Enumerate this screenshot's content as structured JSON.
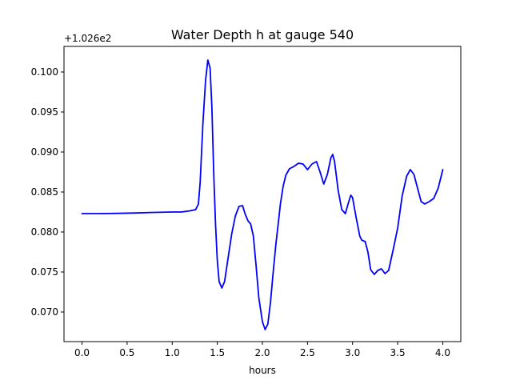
{
  "chart_data": {
    "type": "line",
    "title": "Water Depth h at gauge 540",
    "xlabel": "hours",
    "ylabel": "",
    "y_offset_label": "+1.026e2",
    "xlim": [
      -0.2,
      4.2
    ],
    "ylim": [
      0.0663,
      0.1032
    ],
    "x_ticks": [
      0.0,
      0.5,
      1.0,
      1.5,
      2.0,
      2.5,
      3.0,
      3.5,
      4.0
    ],
    "x_tick_labels": [
      "0.0",
      "0.5",
      "1.0",
      "1.5",
      "2.0",
      "2.5",
      "3.0",
      "3.5",
      "4.0"
    ],
    "y_ticks": [
      0.07,
      0.075,
      0.08,
      0.085,
      0.09,
      0.095,
      0.1
    ],
    "y_tick_labels": [
      "0.070",
      "0.075",
      "0.080",
      "0.085",
      "0.090",
      "0.095",
      "0.100"
    ],
    "grid": false,
    "series": [
      {
        "color": "#0000ff",
        "x": [
          0.0,
          0.2,
          0.4,
          0.6,
          0.8,
          1.0,
          1.1,
          1.2,
          1.26,
          1.29,
          1.31,
          1.34,
          1.37,
          1.395,
          1.42,
          1.44,
          1.46,
          1.48,
          1.5,
          1.52,
          1.55,
          1.58,
          1.62,
          1.66,
          1.7,
          1.74,
          1.78,
          1.81,
          1.84,
          1.87,
          1.9,
          1.93,
          1.96,
          2.0,
          2.03,
          2.06,
          2.09,
          2.12,
          2.15,
          2.18,
          2.2,
          2.23,
          2.26,
          2.3,
          2.35,
          2.4,
          2.45,
          2.5,
          2.55,
          2.6,
          2.64,
          2.68,
          2.72,
          2.76,
          2.78,
          2.8,
          2.84,
          2.88,
          2.92,
          2.95,
          2.98,
          3.0,
          3.04,
          3.08,
          3.1,
          3.14,
          3.17,
          3.2,
          3.24,
          3.28,
          3.32,
          3.36,
          3.4,
          3.45,
          3.5,
          3.55,
          3.6,
          3.64,
          3.68,
          3.72,
          3.76,
          3.8,
          3.85,
          3.9,
          3.95,
          4.0
        ],
        "y": [
          0.0823,
          0.0823,
          0.08233,
          0.08238,
          0.08245,
          0.0825,
          0.0825,
          0.08265,
          0.0828,
          0.0835,
          0.0862,
          0.0935,
          0.099,
          0.1015,
          0.1005,
          0.0955,
          0.0875,
          0.081,
          0.0765,
          0.0738,
          0.073,
          0.0738,
          0.0768,
          0.0798,
          0.082,
          0.0832,
          0.0833,
          0.0822,
          0.0814,
          0.081,
          0.0795,
          0.0758,
          0.0718,
          0.0688,
          0.0678,
          0.0685,
          0.0712,
          0.075,
          0.0785,
          0.0815,
          0.0835,
          0.0857,
          0.0871,
          0.0879,
          0.0882,
          0.0886,
          0.0885,
          0.0878,
          0.0885,
          0.0888,
          0.0875,
          0.086,
          0.0872,
          0.0893,
          0.0897,
          0.0888,
          0.0852,
          0.0828,
          0.0823,
          0.0835,
          0.0846,
          0.0843,
          0.0818,
          0.0795,
          0.079,
          0.0788,
          0.0775,
          0.0753,
          0.0747,
          0.0752,
          0.0754,
          0.0748,
          0.0752,
          0.0778,
          0.0805,
          0.0845,
          0.087,
          0.0878,
          0.0872,
          0.0855,
          0.0838,
          0.0835,
          0.0838,
          0.0842,
          0.0855,
          0.0878
        ]
      }
    ]
  }
}
